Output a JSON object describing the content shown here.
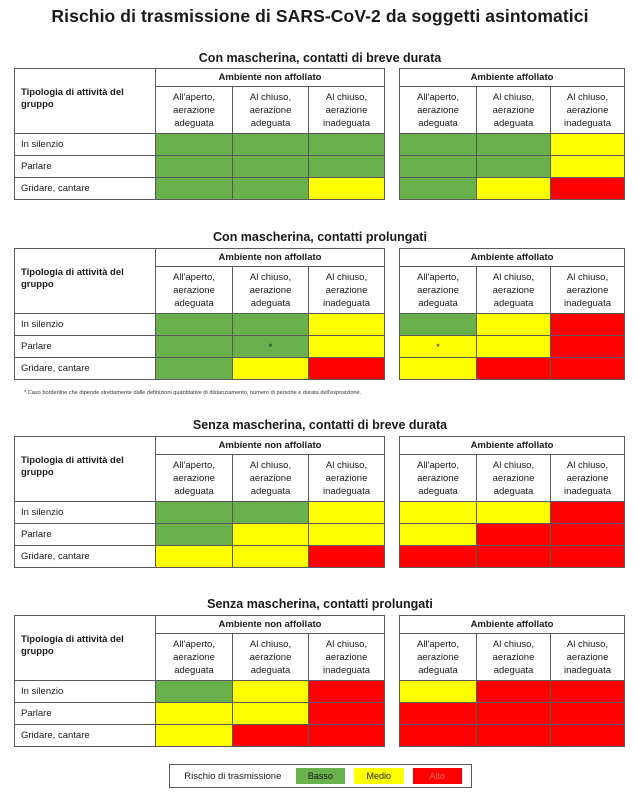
{
  "title": "Rischio di trasmissione di SARS-CoV-2 da soggetti asintomatici",
  "colors": {
    "basso": "#6ab04c",
    "medio": "#ffff00",
    "alto": "#ff0000"
  },
  "headers": {
    "corner": "Tipologia di attività del gruppo",
    "env_non": "Ambiente non affollato",
    "env_aff": "Ambiente affollato",
    "cols": [
      "All'aperto, aerazione adeguata",
      "Al chiuso, aerazione adeguata",
      "Al chiuso, aerazione inadeguata"
    ]
  },
  "rows": [
    "In silenzio",
    "Parlare",
    "Gridare, cantare"
  ],
  "sections": [
    {
      "title": "Con mascherina, contatti di breve durata",
      "cells": [
        [
          "basso",
          "basso",
          "basso",
          "basso",
          "basso",
          "medio"
        ],
        [
          "basso",
          "basso",
          "basso",
          "basso",
          "basso",
          "medio"
        ],
        [
          "basso",
          "basso",
          "medio",
          "basso",
          "medio",
          "alto"
        ]
      ],
      "marks": [
        [
          "",
          "",
          "",
          "",
          "",
          ""
        ],
        [
          "",
          "",
          "",
          "",
          "",
          ""
        ],
        [
          "",
          "",
          "",
          "",
          "",
          ""
        ]
      ]
    },
    {
      "title": "Con mascherina, contatti prolungati",
      "cells": [
        [
          "basso",
          "basso",
          "medio",
          "basso",
          "medio",
          "alto"
        ],
        [
          "basso",
          "basso",
          "medio",
          "medio",
          "medio",
          "alto"
        ],
        [
          "basso",
          "medio",
          "alto",
          "medio",
          "alto",
          "alto"
        ]
      ],
      "marks": [
        [
          "",
          "",
          "",
          "",
          "",
          ""
        ],
        [
          "",
          "*",
          "",
          "*",
          "",
          ""
        ],
        [
          "",
          "",
          "",
          "",
          "",
          ""
        ]
      ]
    },
    {
      "title": "Senza mascherina, contatti di breve durata",
      "cells": [
        [
          "basso",
          "basso",
          "medio",
          "medio",
          "medio",
          "alto"
        ],
        [
          "basso",
          "medio",
          "medio",
          "medio",
          "alto",
          "alto"
        ],
        [
          "medio",
          "medio",
          "alto",
          "alto",
          "alto",
          "alto"
        ]
      ],
      "marks": [
        [
          "",
          "",
          "",
          "",
          "",
          ""
        ],
        [
          "",
          "",
          "",
          "",
          "",
          ""
        ],
        [
          "",
          "",
          "",
          "",
          "",
          ""
        ]
      ]
    },
    {
      "title": "Senza mascherina, contatti prolungati",
      "cells": [
        [
          "basso",
          "medio",
          "alto",
          "medio",
          "alto",
          "alto"
        ],
        [
          "medio",
          "medio",
          "alto",
          "alto",
          "alto",
          "alto"
        ],
        [
          "medio",
          "alto",
          "alto",
          "alto",
          "alto",
          "alto"
        ]
      ],
      "marks": [
        [
          "",
          "",
          "",
          "",
          "",
          ""
        ],
        [
          "",
          "",
          "",
          "",
          "",
          ""
        ],
        [
          "",
          "",
          "",
          "",
          "",
          ""
        ]
      ]
    }
  ],
  "footnote": "* Caso borderline che dipende strettamente dalle definizioni quantitative di distanziamento, numero di persone e durata dell'esposizione.",
  "legend": {
    "label": "Rischio di trasmissione",
    "basso": "Basso",
    "medio": "Medio",
    "alto": "Alto"
  }
}
